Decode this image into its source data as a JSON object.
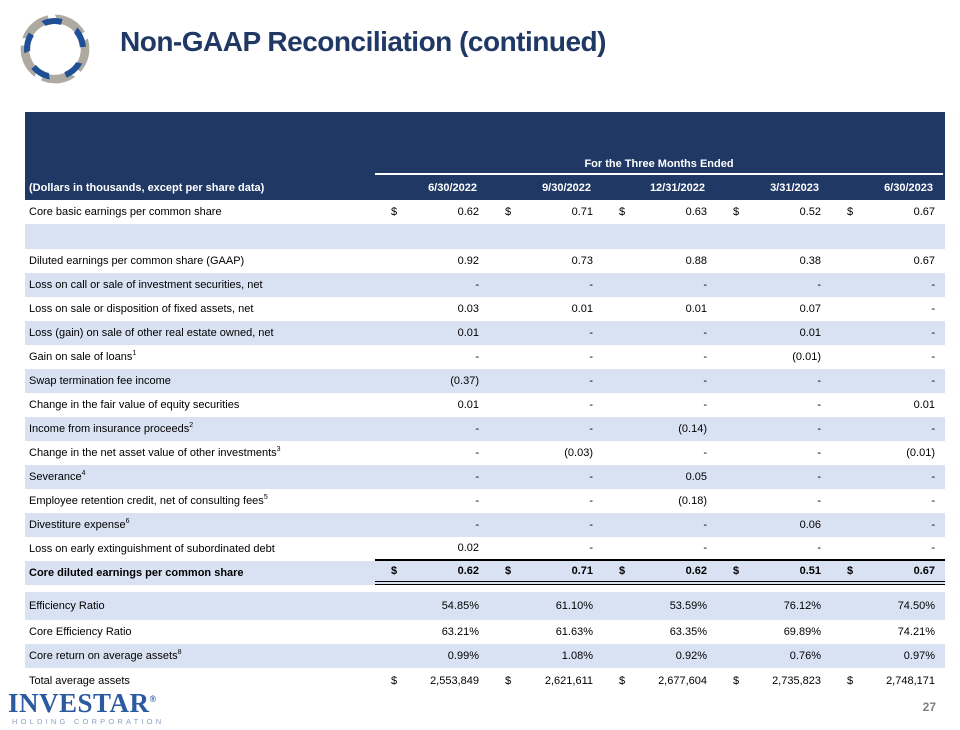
{
  "title": "Non-GAAP Reconciliation (continued)",
  "colors": {
    "header_navy": "#203864",
    "row_light_blue": "#D9E2F3",
    "title_navy": "#1F3864",
    "logo_blue": "#1F5096",
    "logo_gray": "#AEA9A1",
    "wordmark_blue": "#2B5AA0",
    "page_number_gray": "#7F7F7F"
  },
  "table": {
    "period_header": "For the Three Months Ended",
    "label_header": "(Dollars in thousands, except per share data)",
    "columns": [
      "6/30/2022",
      "9/30/2022",
      "12/31/2022",
      "3/31/2023",
      "6/30/2023"
    ],
    "rows": [
      {
        "label": "Core basic earnings per common share",
        "sup": "",
        "dollar": true,
        "shade": false,
        "values": [
          "0.62",
          "0.71",
          "0.63",
          "0.52",
          "0.67"
        ]
      },
      {
        "blank": true,
        "shade": true
      },
      {
        "label": "Diluted earnings per common share (GAAP)",
        "sup": "",
        "shade": false,
        "values": [
          "0.92",
          "0.73",
          "0.88",
          "0.38",
          "0.67"
        ]
      },
      {
        "label": "Loss on call or sale of investment securities, net",
        "sup": "",
        "shade": true,
        "values": [
          "-",
          "-",
          "-",
          "-",
          "-"
        ]
      },
      {
        "label": "Loss on sale or disposition of fixed assets, net",
        "sup": "",
        "shade": false,
        "values": [
          "0.03",
          "0.01",
          "0.01",
          "0.07",
          "-"
        ]
      },
      {
        "label": "Loss (gain) on sale of other real estate owned, net",
        "sup": "",
        "shade": true,
        "values": [
          "0.01",
          "-",
          "-",
          "0.01",
          "-"
        ]
      },
      {
        "label": "Gain on sale of loans",
        "sup": "1",
        "shade": false,
        "values": [
          "-",
          "-",
          "-",
          "(0.01)",
          "-"
        ]
      },
      {
        "label": "Swap termination fee income",
        "sup": "",
        "shade": true,
        "values": [
          "(0.37)",
          "-",
          "-",
          "-",
          "-"
        ]
      },
      {
        "label": "Change in the fair value of equity securities",
        "sup": "",
        "shade": false,
        "values": [
          "0.01",
          "-",
          "-",
          "-",
          "0.01"
        ]
      },
      {
        "label": "Income from insurance proceeds",
        "sup": "2",
        "shade": true,
        "values": [
          "-",
          "-",
          "(0.14)",
          "-",
          "-"
        ]
      },
      {
        "label": "Change in the net asset value of other investments",
        "sup": "3",
        "shade": false,
        "values": [
          "-",
          "(0.03)",
          "-",
          "-",
          "(0.01)"
        ]
      },
      {
        "label": "Severance",
        "sup": "4",
        "shade": true,
        "values": [
          "-",
          "-",
          "0.05",
          "-",
          "-"
        ]
      },
      {
        "label": "Employee retention credit, net of consulting fees",
        "sup": "5",
        "shade": false,
        "values": [
          "-",
          "-",
          "(0.18)",
          "-",
          "-"
        ]
      },
      {
        "label": "Divestiture expense",
        "sup": "6",
        "shade": true,
        "values": [
          "-",
          "-",
          "-",
          "0.06",
          "-"
        ]
      },
      {
        "label": "Loss on early extinguishment of subordinated debt",
        "sup": "",
        "shade": false,
        "underline": "single",
        "values": [
          "0.02",
          "-",
          "-",
          "-",
          "-"
        ]
      },
      {
        "label": "Core diluted earnings per common share",
        "sup": "",
        "dollar": true,
        "bold": true,
        "shade": true,
        "underline": "double",
        "values": [
          "0.62",
          "0.71",
          "0.62",
          "0.51",
          "0.67"
        ]
      },
      {
        "blank": true,
        "shade": false,
        "spacer": true
      },
      {
        "label": "Efficiency Ratio",
        "sup": "",
        "shade": true,
        "tall": true,
        "values": [
          "54.85%",
          "61.10%",
          "53.59%",
          "76.12%",
          "74.50%"
        ]
      },
      {
        "label": "Core Efficiency Ratio",
        "sup": "",
        "shade": false,
        "values": [
          "63.21%",
          "61.63%",
          "63.35%",
          "69.89%",
          "74.21%"
        ]
      },
      {
        "label": "Core return on average assets",
        "sup": "8",
        "shade": true,
        "values": [
          "0.99%",
          "1.08%",
          "0.92%",
          "0.76%",
          "0.97%"
        ]
      },
      {
        "label": "Total average assets",
        "sup": "",
        "dollar": true,
        "shade": false,
        "tall2": true,
        "values": [
          "2,553,849",
          "2,621,611",
          "2,677,604",
          "2,735,823",
          "2,748,171"
        ]
      }
    ]
  },
  "footer": {
    "brand": "INVESTAR",
    "brand_reg": "®",
    "brand_sub": "HOLDING CORPORATION",
    "page_number": "27"
  }
}
